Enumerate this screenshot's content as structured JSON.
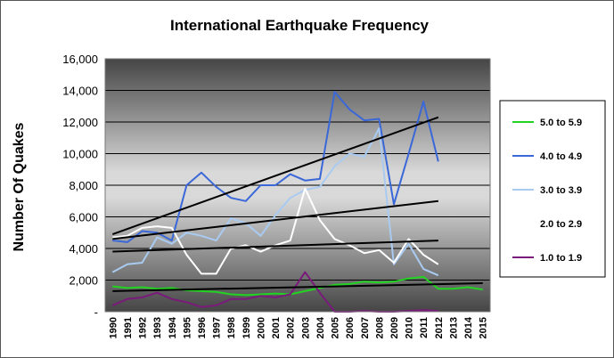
{
  "chart_data": {
    "type": "line",
    "title": "International Earthquake Frequency",
    "ylabel": "Number Of Quakes",
    "xlabel": "",
    "ylim": [
      0,
      16000
    ],
    "ytick_values": [
      0,
      2000,
      4000,
      6000,
      8000,
      10000,
      12000,
      14000,
      16000
    ],
    "ytick_labels": [
      "-",
      "2,000",
      "4,000",
      "6,000",
      "8,000",
      "10,000",
      "12,000",
      "14,000",
      "16,000"
    ],
    "categories": [
      "1990",
      "1991",
      "1992",
      "1993",
      "1994",
      "1995",
      "1996",
      "1997",
      "1998",
      "1999",
      "2000",
      "2001",
      "2002",
      "2003",
      "2004",
      "2005",
      "2006",
      "2007",
      "2008",
      "2009",
      "2010",
      "2011",
      "2012",
      "2013",
      "2014",
      "2015"
    ],
    "grid": true,
    "legend_position": "right",
    "series": [
      {
        "name": "5.0 to 5.9",
        "color": "#22d322",
        "width": 2,
        "values": [
          1600,
          1500,
          1550,
          1450,
          1500,
          1350,
          1300,
          1250,
          1100,
          1050,
          1100,
          1150,
          1100,
          1300,
          1500,
          1700,
          1750,
          1900,
          1850,
          1900,
          2100,
          2200,
          1450,
          1450,
          1550,
          1400
        ]
      },
      {
        "name": "4.0 to 4.9",
        "color": "#3a68d8",
        "width": 2,
        "values": [
          4500,
          4400,
          5100,
          5000,
          4500,
          8000,
          8800,
          7900,
          7200,
          7000,
          8000,
          8000,
          8700,
          8300,
          8400,
          13900,
          12800,
          12100,
          12200,
          6800,
          10000,
          13300,
          9500,
          null,
          null,
          null
        ]
      },
      {
        "name": "3.0 to 3.9",
        "color": "#a9cbf2",
        "width": 2,
        "values": [
          2500,
          3000,
          3100,
          4700,
          4300,
          5000,
          4800,
          4500,
          5900,
          5600,
          4800,
          6100,
          7200,
          7700,
          7900,
          9200,
          10000,
          9800,
          11600,
          3000,
          4300,
          2700,
          2300,
          null,
          null,
          null
        ]
      },
      {
        "name": "2.0 to 2.9",
        "color": "#ffffff",
        "width": 2,
        "values": [
          4700,
          4800,
          5300,
          5400,
          5300,
          3600,
          2400,
          2400,
          4000,
          4200,
          3800,
          4200,
          4500,
          7800,
          5800,
          4600,
          4200,
          3700,
          3900,
          3100,
          4600,
          3600,
          3000,
          null,
          null,
          null
        ]
      },
      {
        "name": "1.0 to 1.9",
        "color": "#7a1a7a",
        "width": 2,
        "values": [
          400,
          800,
          900,
          1200,
          800,
          600,
          300,
          400,
          800,
          800,
          1000,
          900,
          1100,
          2500,
          1200,
          0,
          0,
          50,
          0,
          0,
          50,
          100,
          50,
          null,
          null,
          null
        ]
      }
    ],
    "trendlines": [
      {
        "color": "#000000",
        "values": [
          4900,
          12300
        ],
        "x_range": [
          "1990",
          "2012"
        ]
      },
      {
        "color": "#000000",
        "values": [
          4600,
          7000
        ],
        "x_range": [
          "1990",
          "2012"
        ]
      },
      {
        "color": "#000000",
        "values": [
          3800,
          4500
        ],
        "x_range": [
          "1990",
          "2012"
        ]
      },
      {
        "color": "#000000",
        "values": [
          1300,
          1800
        ],
        "x_range": [
          "1990",
          "2015"
        ]
      }
    ]
  }
}
